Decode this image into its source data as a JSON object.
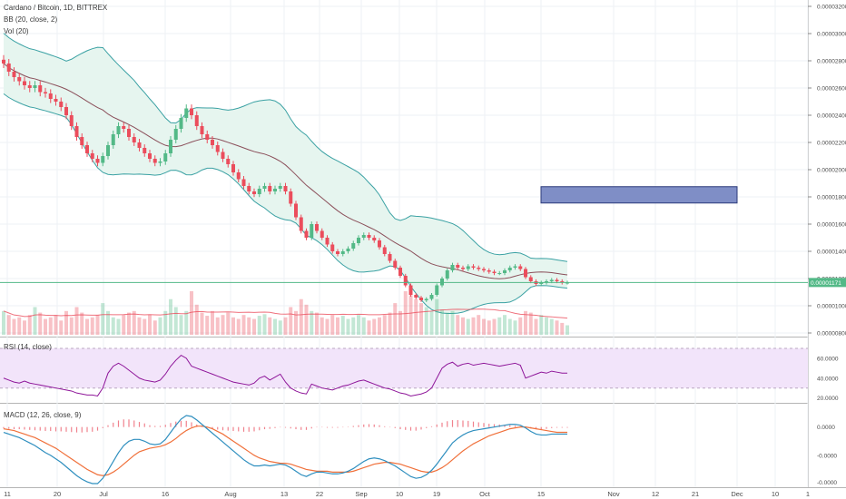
{
  "header": {
    "symbol": "Cardano / Bitcoin, 1D, BITTREX",
    "bb": "BB (20, close, 2)",
    "vol": "Vol (20)",
    "rsi": "RSI (14, close)",
    "macd": "MACD (12, 26, close, 9)"
  },
  "colors": {
    "up": "#53b987",
    "down": "#eb4d5c",
    "bb_line": "#3aa1a3",
    "bb_basis": "#8b4f5a",
    "bb_fill": "#e6f5ef",
    "rsi_line": "#8e1599",
    "rsi_band": "#f2e4fa",
    "macd_line": "#2f8fbf",
    "signal_line": "#f0703a",
    "hist": "#eb4d5c",
    "rectangle": "#7f8ec6",
    "price_line": "#53b987"
  },
  "chart_data": [
    {
      "name": "price",
      "type": "candlestick",
      "price_axis_ticks": [
        "0.00003200",
        "0.00003000",
        "0.00002800",
        "0.00002600",
        "0.00002400",
        "0.00002200",
        "0.00002000",
        "0.00001800",
        "0.00001600",
        "0.00001400",
        "0.00001200",
        "0.00001000",
        "0.00000800"
      ],
      "ylim": [
        7.8e-06,
        3.22e-05
      ],
      "last_price_label": "0.00001171",
      "last_price": 1.171e-05,
      "time_axis_ticks": [
        "11",
        "20",
        "Jul",
        "16",
        "Aug",
        "13",
        "22",
        "Sep",
        "10",
        "19",
        "Oct",
        "15",
        "Nov",
        "12",
        "21",
        "Dec",
        "10",
        "1"
      ],
      "closes": [
        2.78e-05,
        2.72e-05,
        2.68e-05,
        2.65e-05,
        2.62e-05,
        2.6e-05,
        2.62e-05,
        2.57e-05,
        2.56e-05,
        2.52e-05,
        2.5e-05,
        2.46e-05,
        2.4e-05,
        2.32e-05,
        2.24e-05,
        2.18e-05,
        2.12e-05,
        2.08e-05,
        2.05e-05,
        2.1e-05,
        2.18e-05,
        2.26e-05,
        2.32e-05,
        2.3e-05,
        2.24e-05,
        2.2e-05,
        2.16e-05,
        2.12e-05,
        2.08e-05,
        2.05e-05,
        2.06e-05,
        2.12e-05,
        2.22e-05,
        2.3e-05,
        2.38e-05,
        2.45e-05,
        2.4e-05,
        2.32e-05,
        2.26e-05,
        2.22e-05,
        2.18e-05,
        2.13e-05,
        2.08e-05,
        2.04e-05,
        1.98e-05,
        1.93e-05,
        1.88e-05,
        1.84e-05,
        1.82e-05,
        1.86e-05,
        1.88e-05,
        1.84e-05,
        1.86e-05,
        1.88e-05,
        1.84e-05,
        1.75e-05,
        1.65e-05,
        1.55e-05,
        1.5e-05,
        1.6e-05,
        1.55e-05,
        1.5e-05,
        1.45e-05,
        1.4e-05,
        1.38e-05,
        1.4e-05,
        1.42e-05,
        1.46e-05,
        1.5e-05,
        1.52e-05,
        1.5e-05,
        1.48e-05,
        1.43e-05,
        1.38e-05,
        1.33e-05,
        1.28e-05,
        1.22e-05,
        1.15e-05,
        1.08e-05,
        1.06e-05,
        1.04e-05,
        1.05e-05,
        1.08e-05,
        1.15e-05,
        1.2e-05,
        1.26e-05,
        1.3e-05,
        1.28e-05,
        1.27e-05,
        1.29e-05,
        1.28e-05,
        1.27e-05,
        1.26e-05,
        1.25e-05,
        1.24e-05,
        1.24e-05,
        1.26e-05,
        1.28e-05,
        1.29e-05,
        1.27e-05,
        1.21e-05,
        1.18e-05,
        1.16e-05,
        1.17e-05,
        1.18e-05,
        1.19e-05,
        1.18e-05,
        1.17e-05,
        1.17e-05
      ],
      "rectangle": {
        "x_from": "15",
        "x_to": "Dec",
        "y_top": 1.875e-05,
        "y_bottom": 1.755e-05
      }
    },
    {
      "name": "volume",
      "type": "bar",
      "values": [
        30,
        25,
        20,
        22,
        18,
        25,
        35,
        28,
        20,
        22,
        25,
        18,
        30,
        22,
        35,
        28,
        20,
        22,
        25,
        40,
        30,
        22,
        20,
        25,
        28,
        30,
        22,
        20,
        25,
        18,
        22,
        30,
        45,
        35,
        25,
        30,
        55,
        38,
        28,
        24,
        30,
        22,
        25,
        28,
        22,
        20,
        25,
        22,
        20,
        24,
        26,
        22,
        20,
        18,
        22,
        35,
        30,
        45,
        38,
        30,
        28,
        22,
        20,
        25,
        22,
        24,
        20,
        22,
        25,
        22,
        18,
        20,
        22,
        25,
        28,
        40,
        30,
        55,
        50,
        45,
        40,
        35,
        30,
        45,
        32,
        28,
        30,
        25,
        22,
        20,
        22,
        25,
        20,
        18,
        20,
        22,
        25,
        20,
        18,
        22,
        30,
        28,
        20,
        25,
        22,
        20,
        18,
        15,
        12
      ]
    },
    {
      "name": "rsi",
      "type": "line",
      "levels": [
        70,
        30
      ],
      "axis_ticks": [
        "60.0000",
        "40.0000",
        "20.0000"
      ],
      "ylim": [
        16,
        80
      ],
      "values": [
        40,
        38,
        36,
        35,
        37,
        35,
        34,
        33,
        32,
        31,
        30,
        29,
        28,
        27,
        25,
        24,
        23,
        23,
        22,
        30,
        45,
        52,
        55,
        52,
        48,
        44,
        40,
        38,
        37,
        36,
        38,
        44,
        52,
        58,
        63,
        60,
        52,
        50,
        48,
        46,
        44,
        42,
        40,
        38,
        36,
        35,
        34,
        33,
        35,
        40,
        42,
        38,
        41,
        44,
        36,
        30,
        27,
        25,
        24,
        34,
        32,
        30,
        29,
        28,
        30,
        32,
        33,
        35,
        37,
        38,
        36,
        34,
        32,
        30,
        29,
        27,
        25,
        24,
        22,
        23,
        24,
        26,
        30,
        40,
        50,
        54,
        56,
        52,
        54,
        55,
        53,
        54,
        55,
        54,
        53,
        52,
        53,
        54,
        55,
        53,
        40,
        42,
        44,
        46,
        45,
        47,
        46,
        45,
        45
      ],
      "label_values": [
        "60.0000",
        "40.0000"
      ]
    },
    {
      "name": "macd",
      "type": "line",
      "axis_ticks": [
        "0.0000",
        "-0.0000",
        "-0.0000"
      ],
      "series": [
        {
          "name": "MACD",
          "values": [
            -0.6,
            -0.8,
            -1.0,
            -1.2,
            -1.5,
            -1.8,
            -2.1,
            -2.5,
            -2.9,
            -3.2,
            -3.6,
            -4.0,
            -4.5,
            -5.0,
            -5.5,
            -5.9,
            -6.2,
            -6.4,
            -6.4,
            -5.8,
            -4.9,
            -3.9,
            -2.9,
            -2.1,
            -1.6,
            -1.4,
            -1.4,
            -1.6,
            -1.9,
            -2.0,
            -1.9,
            -1.4,
            -0.6,
            0.2,
            0.9,
            1.3,
            1.2,
            0.8,
            0.3,
            -0.2,
            -0.7,
            -1.2,
            -1.7,
            -2.2,
            -2.7,
            -3.2,
            -3.7,
            -4.1,
            -4.4,
            -4.4,
            -4.3,
            -4.4,
            -4.3,
            -4.2,
            -4.3,
            -4.6,
            -5.0,
            -5.4,
            -5.6,
            -5.3,
            -5.1,
            -5.1,
            -5.2,
            -5.3,
            -5.3,
            -5.2,
            -5.0,
            -4.7,
            -4.3,
            -3.9,
            -3.6,
            -3.5,
            -3.6,
            -3.8,
            -4.1,
            -4.4,
            -4.8,
            -5.2,
            -5.6,
            -5.8,
            -5.7,
            -5.4,
            -4.9,
            -4.2,
            -3.4,
            -2.6,
            -1.8,
            -1.3,
            -0.9,
            -0.6,
            -0.4,
            -0.3,
            -0.2,
            -0.1,
            0,
            0.1,
            0.2,
            0.3,
            0.3,
            0.2,
            -0.1,
            -0.5,
            -0.8,
            -0.9,
            -0.9,
            -0.8,
            -0.8,
            -0.8,
            -0.8
          ]
        },
        {
          "name": "Signal",
          "values": [
            -0.2,
            -0.3,
            -0.4,
            -0.6,
            -0.8,
            -1.0,
            -1.2,
            -1.5,
            -1.8,
            -2.1,
            -2.4,
            -2.8,
            -3.2,
            -3.6,
            -4.0,
            -4.4,
            -4.8,
            -5.1,
            -5.4,
            -5.5,
            -5.4,
            -5.1,
            -4.7,
            -4.2,
            -3.7,
            -3.2,
            -2.8,
            -2.6,
            -2.4,
            -2.3,
            -2.2,
            -2.0,
            -1.7,
            -1.3,
            -0.8,
            -0.4,
            -0.1,
            0.1,
            0.1,
            0,
            -0.2,
            -0.5,
            -0.8,
            -1.2,
            -1.6,
            -2.0,
            -2.4,
            -2.8,
            -3.2,
            -3.5,
            -3.7,
            -3.9,
            -4.0,
            -4.1,
            -4.1,
            -4.2,
            -4.4,
            -4.6,
            -4.8,
            -4.9,
            -5.0,
            -5.0,
            -5.0,
            -5.1,
            -5.1,
            -5.1,
            -5.1,
            -5.0,
            -4.8,
            -4.6,
            -4.4,
            -4.2,
            -4.1,
            -4.0,
            -4.0,
            -4.1,
            -4.2,
            -4.4,
            -4.6,
            -4.8,
            -5.0,
            -5.1,
            -5.1,
            -4.9,
            -4.6,
            -4.2,
            -3.7,
            -3.2,
            -2.7,
            -2.3,
            -1.9,
            -1.6,
            -1.3,
            -1.0,
            -0.8,
            -0.6,
            -0.4,
            -0.2,
            -0.1,
            0,
            0,
            -0.1,
            -0.2,
            -0.3,
            -0.4,
            -0.5,
            -0.6,
            -0.6,
            -0.6
          ]
        }
      ]
    }
  ]
}
